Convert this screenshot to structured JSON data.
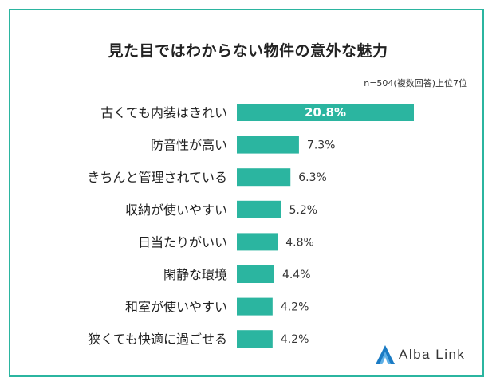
{
  "title": "見た目ではわからない物件の意外な魅力",
  "note": "n=504(複数回答)上位7位",
  "brand": {
    "name": "Alba Link",
    "accent": "#1a7bc4"
  },
  "colors": {
    "bar": "#2bb5a0",
    "frame": "#2bb5a0",
    "label_inside": "#ffffff",
    "label_outside": "#333333"
  },
  "chart_data": {
    "type": "bar",
    "orientation": "horizontal",
    "categories": [
      "古くても内装はきれい",
      "防音性が高い",
      "きちんと管理されている",
      "収納が使いやすい",
      "日当たりがいい",
      "閑静な環境",
      "和室が使いやすい",
      "狭くても快適に過ごせる"
    ],
    "values": [
      20.8,
      7.3,
      6.3,
      5.2,
      4.8,
      4.4,
      4.2,
      4.2
    ],
    "value_labels": [
      "20.8%",
      "7.3%",
      "6.3%",
      "5.2%",
      "4.8%",
      "4.4%",
      "4.2%",
      "4.2%"
    ],
    "title": "見た目ではわからない物件の意外な魅力",
    "xlabel": "",
    "ylabel": "",
    "xlim": [
      0,
      20.8
    ],
    "grid": false,
    "legend": "none"
  }
}
